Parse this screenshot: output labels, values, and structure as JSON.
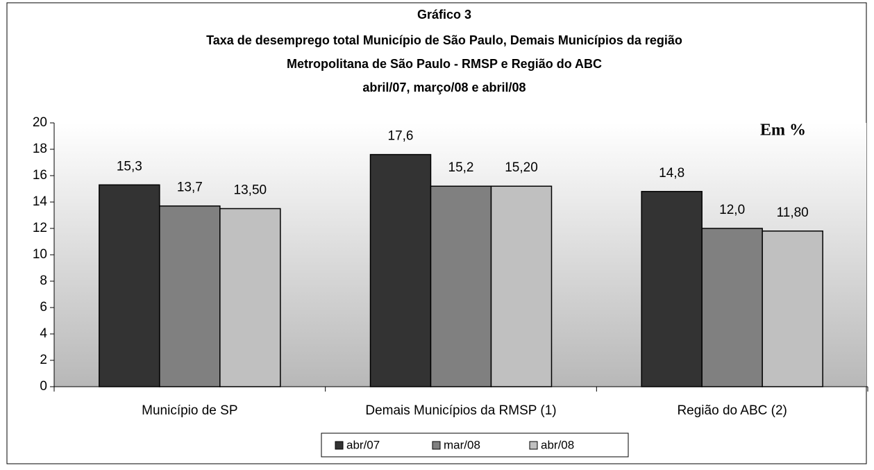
{
  "chart_data": {
    "type": "bar",
    "title": [
      "Gráfico 3",
      "Taxa de desemprego total Município de São Paulo, Demais Municípios da região",
      "Metropolitana de São Paulo - RMSP e Região do ABC",
      "abril/07, março/08 e abril/08"
    ],
    "annotation": "Em %",
    "categories": [
      "Município de SP",
      "Demais Municípios da RMSP (1)",
      "Região do ABC (2)"
    ],
    "series": [
      {
        "name": "abr/07",
        "color": "#333333",
        "values": [
          15.3,
          17.6,
          14.8
        ],
        "value_labels": [
          "15,3",
          "17,6",
          "14,8"
        ]
      },
      {
        "name": "mar/08",
        "color": "#808080",
        "values": [
          13.7,
          15.2,
          12.0
        ],
        "value_labels": [
          "13,7",
          "15,2",
          "12,0"
        ]
      },
      {
        "name": "abr/08",
        "color": "#c0c0c0",
        "values": [
          13.5,
          15.2,
          11.8
        ],
        "value_labels": [
          "13,50",
          "15,20",
          "11,80"
        ]
      }
    ],
    "ylim": [
      0,
      20
    ],
    "yticks": [
      0,
      2,
      4,
      6,
      8,
      10,
      12,
      14,
      16,
      18,
      20
    ],
    "legend": "bottom"
  }
}
